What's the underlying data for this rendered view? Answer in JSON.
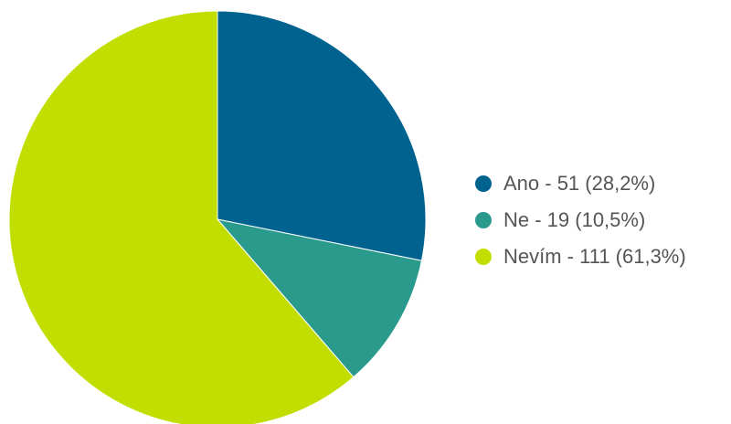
{
  "chart_data": {
    "type": "pie",
    "categories": [
      "Ano",
      "Ne",
      "Nevím"
    ],
    "values": [
      51,
      19,
      111
    ],
    "percentages": [
      "28,2%",
      "10,5%",
      "61,3%"
    ],
    "colors": [
      "#00628f",
      "#2a9a8c",
      "#c1de00"
    ],
    "legend": {
      "placement": "right",
      "entries": [
        "Ano - 51 (28,2%)",
        "Ne - 19 (10,5%)",
        "Nevím - 111 (61,3%)"
      ]
    },
    "start_angle": "12 o'clock",
    "direction": "clockwise"
  }
}
